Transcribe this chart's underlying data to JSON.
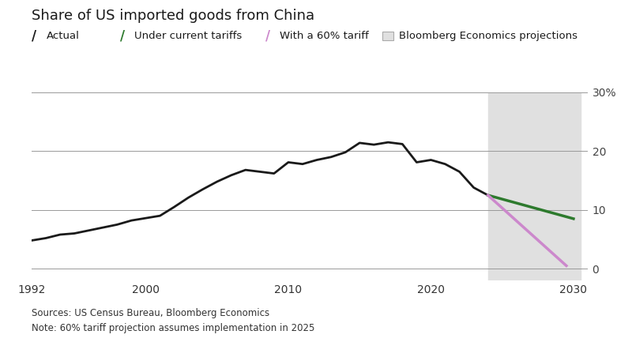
{
  "title": "Share of US imported goods from China",
  "sources_note": "Sources: US Census Bureau, Bloomberg Economics",
  "note": "Note: 60% tariff projection assumes implementation in 2025",
  "actual_x": [
    1992,
    1993,
    1994,
    1995,
    1996,
    1997,
    1998,
    1999,
    2000,
    2001,
    2002,
    2003,
    2004,
    2005,
    2006,
    2007,
    2008,
    2009,
    2010,
    2011,
    2012,
    2013,
    2014,
    2015,
    2016,
    2017,
    2018,
    2019,
    2020,
    2021,
    2022,
    2023,
    2024
  ],
  "actual_y": [
    4.8,
    5.2,
    5.8,
    6.0,
    6.5,
    7.0,
    7.5,
    8.2,
    8.6,
    9.0,
    10.5,
    12.1,
    13.5,
    14.8,
    15.9,
    16.8,
    16.5,
    16.2,
    18.1,
    17.8,
    18.5,
    19.0,
    19.8,
    21.4,
    21.1,
    21.5,
    21.2,
    18.1,
    18.5,
    17.8,
    16.5,
    13.8,
    12.5
  ],
  "green_x": [
    2024,
    2030
  ],
  "green_y": [
    12.5,
    8.5
  ],
  "purple_x": [
    2024,
    2029.5
  ],
  "purple_y": [
    12.5,
    0.5
  ],
  "shade_x_start": 2024,
  "shade_x_end": 2030.5,
  "xlim": [
    1992,
    2031
  ],
  "ylim": [
    -2,
    30
  ],
  "yticks": [
    0,
    10,
    20,
    30
  ],
  "ytick_labels": [
    "0",
    "10",
    "20",
    "30%"
  ],
  "xticks": [
    1992,
    2000,
    2010,
    2020,
    2030
  ],
  "xtick_labels": [
    "1992",
    "2000",
    "2010",
    "2020",
    "2030"
  ],
  "actual_color": "#1a1a1a",
  "green_color": "#2d7a2d",
  "purple_color": "#cc88cc",
  "shade_color": "#e0e0e0",
  "background_color": "#ffffff",
  "hline_color": "#999999",
  "hline_y": [
    0,
    10,
    20,
    30
  ]
}
